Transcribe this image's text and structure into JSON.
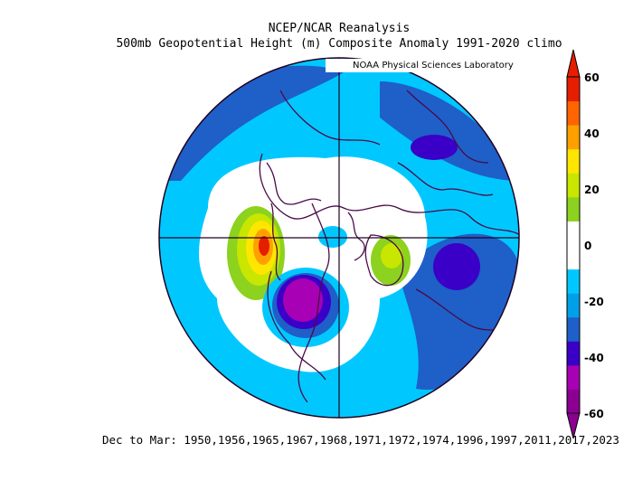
{
  "header": {
    "title_line1": "NCEP/NCAR Reanalysis",
    "title_line2": "500mb Geopotential Height (m) Composite Anomaly 1991-2020 climo",
    "credit": "NOAA Physical Sciences Laboratory"
  },
  "footer": {
    "text": "Dec to Mar: 1950,1956,1965,1967,1968,1971,1972,1974,1996,1997,2011,2017,2023"
  },
  "colorbar": {
    "labels": [
      "60",
      "40",
      "20",
      "0",
      "-20",
      "-40",
      "-60"
    ],
    "colors": [
      "#8c0091",
      "#a800b4",
      "#3a00c8",
      "#1f5fc8",
      "#00a0e8",
      "#00c8ff",
      "#ffffff",
      "#ffffff",
      "#8cd21e",
      "#c8e600",
      "#ffe600",
      "#ffa000",
      "#ff6400",
      "#e61e00"
    ]
  },
  "map_colors": {
    "ocean_neutral": "#ffffff",
    "land_outline": "#4a0a4a",
    "grid": "#200020"
  }
}
